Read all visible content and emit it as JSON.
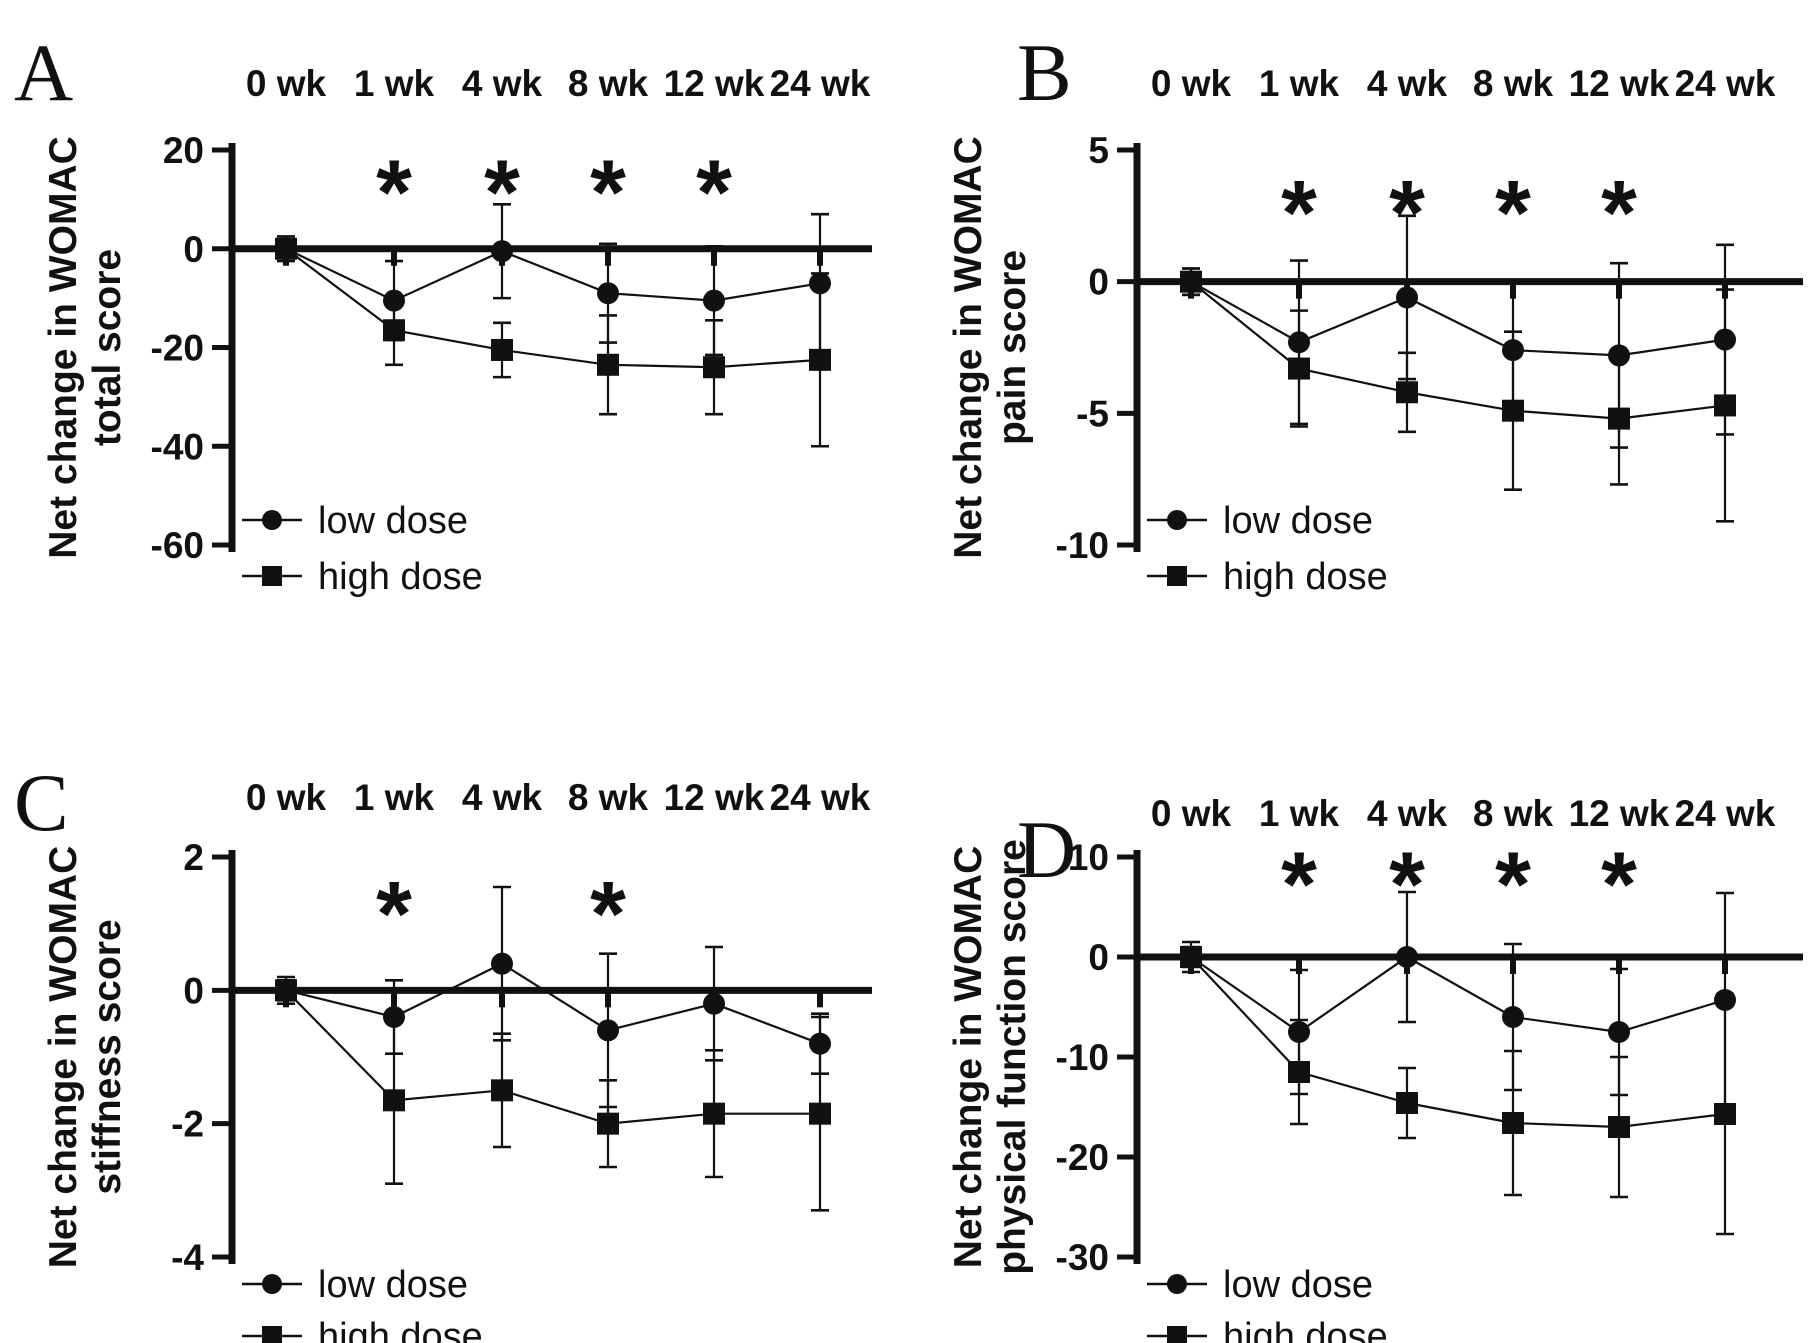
{
  "figure": {
    "background": "#ffffff",
    "ink": "#111111",
    "marker_legend": {
      "circle": "filled-circle-marker",
      "square": "filled-square-marker"
    }
  },
  "chart_data": [
    {
      "panel": "A",
      "type": "line",
      "ylabel": "Net change in WOMAC\ntotal score",
      "categories": [
        "0 wk",
        "1 wk",
        "4 wk",
        "8 wk",
        "12 wk",
        "24 wk"
      ],
      "yticks": [
        20,
        0,
        -20,
        -40,
        -60
      ],
      "ylim": [
        -60,
        20
      ],
      "grid": false,
      "legend_position": "bottom-left",
      "series": [
        {
          "name": "low dose",
          "marker": "circle",
          "values": [
            0,
            -10.5,
            -0.5,
            -9,
            -10.5,
            -7
          ],
          "err": [
            2.5,
            8,
            9.5,
            10,
            11,
            14
          ]
        },
        {
          "name": "high dose",
          "marker": "square",
          "values": [
            0,
            -16.5,
            -20.5,
            -23.5,
            -24,
            -22.5
          ],
          "err": [
            1.5,
            7,
            5.5,
            10,
            9.5,
            17.5
          ]
        }
      ],
      "significance": {
        "symbol": "*",
        "at": [
          "1 wk",
          "4 wk",
          "8 wk",
          "12 wk"
        ],
        "y": 13.5
      }
    },
    {
      "panel": "B",
      "type": "line",
      "ylabel": "Net change in WOMAC\npain score",
      "categories": [
        "0 wk",
        "1 wk",
        "4 wk",
        "8 wk",
        "12 wk",
        "24 wk"
      ],
      "yticks": [
        5,
        0,
        -5,
        -10
      ],
      "ylim": [
        -10,
        5
      ],
      "grid": false,
      "legend_position": "bottom-left",
      "series": [
        {
          "name": "low dose",
          "marker": "circle",
          "values": [
            0,
            -2.3,
            -0.6,
            -2.6,
            -2.8,
            -2.2
          ],
          "err": [
            0.5,
            3.1,
            3.1,
            2.6,
            3.5,
            3.6
          ]
        },
        {
          "name": "high dose",
          "marker": "square",
          "values": [
            0,
            -3.3,
            -4.2,
            -4.9,
            -5.2,
            -4.7
          ],
          "err": [
            0.5,
            2.2,
            1.5,
            3.0,
            2.5,
            4.4
          ]
        }
      ],
      "significance": {
        "symbol": "*",
        "at": [
          "1 wk",
          "4 wk",
          "8 wk",
          "12 wk"
        ],
        "y": 3.0
      }
    },
    {
      "panel": "C",
      "type": "line",
      "ylabel": "Net change in WOMAC\nstiffness score",
      "categories": [
        "0 wk",
        "1 wk",
        "4 wk",
        "8 wk",
        "12 wk",
        "24 wk"
      ],
      "yticks": [
        2,
        0,
        -2,
        -4
      ],
      "ylim": [
        -4,
        2
      ],
      "grid": false,
      "legend_position": "bottom-left",
      "series": [
        {
          "name": "low dose",
          "marker": "circle",
          "values": [
            0,
            -0.4,
            0.4,
            -0.6,
            -0.2,
            -0.8
          ],
          "err": [
            0.2,
            0.55,
            1.15,
            1.15,
            0.85,
            0.45
          ]
        },
        {
          "name": "high dose",
          "marker": "square",
          "values": [
            0,
            -1.65,
            -1.5,
            -2.0,
            -1.85,
            -1.85
          ],
          "err": [
            0.15,
            1.25,
            0.85,
            0.65,
            0.95,
            1.45
          ]
        }
      ],
      "significance": {
        "symbol": "*",
        "at": [
          "1 wk",
          "8 wk"
        ],
        "y": 1.3
      }
    },
    {
      "panel": "D",
      "type": "line",
      "ylabel": "Net change in WOMAC\nphysical function score",
      "categories": [
        "0 wk",
        "1 wk",
        "4 wk",
        "8 wk",
        "12 wk",
        "24 wk"
      ],
      "yticks": [
        10,
        0,
        -10,
        -20,
        -30
      ],
      "ylim": [
        -30,
        10
      ],
      "grid": false,
      "legend_position": "bottom-left",
      "series": [
        {
          "name": "low dose",
          "marker": "circle",
          "values": [
            0,
            -7.5,
            0,
            -6,
            -7.5,
            -4.3
          ],
          "err": [
            1.5,
            6.2,
            6.5,
            7.3,
            6.3,
            10.7
          ]
        },
        {
          "name": "high dose",
          "marker": "square",
          "values": [
            0,
            -11.5,
            -14.6,
            -16.6,
            -17,
            -15.7
          ],
          "err": [
            1.0,
            5.2,
            3.5,
            7.2,
            7.0,
            12.0
          ]
        }
      ],
      "significance": {
        "symbol": "*",
        "at": [
          "1 wk",
          "4 wk",
          "8 wk",
          "12 wk"
        ],
        "y": 8.3
      }
    }
  ]
}
